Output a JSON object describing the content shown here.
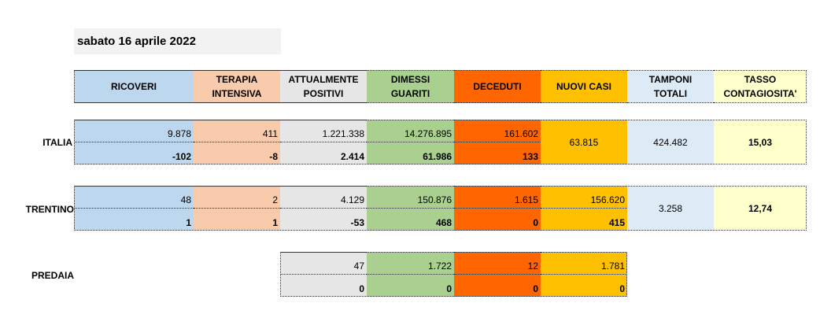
{
  "date": "sabato 16 aprile 2022",
  "headers": [
    "RICOVERI",
    "TERAPIA\nINTENSIVA",
    "ATTUALMENTE\nPOSITIVI",
    "DIMESSI\nGUARITI",
    "DECEDUTI",
    "NUOVI CASI",
    "TAMPONI\nTOTALI",
    "TASSO\nCONTAGIOSITA'"
  ],
  "italia": {
    "label": "ITALIA",
    "totals": [
      "9.878",
      "411",
      "1.221.338",
      "14.276.895",
      "161.602"
    ],
    "deltas": [
      "-102",
      "-8",
      "2.414",
      "61.986",
      "133"
    ],
    "nuovi_casi": "63.815",
    "tamponi": "424.482",
    "tasso": "15,03"
  },
  "trentino": {
    "label": "TRENTINO",
    "totals": [
      "48",
      "2",
      "4.129",
      "150.876",
      "1.615",
      "156.620"
    ],
    "deltas": [
      "1",
      "1",
      "-53",
      "468",
      "0",
      "415"
    ],
    "tamponi": "3.258",
    "tasso": "12,74"
  },
  "predaia": {
    "label": "PREDAIA",
    "totals": [
      "47",
      "1.722",
      "12",
      "1.781"
    ],
    "deltas": [
      "0",
      "0",
      "0",
      "0"
    ]
  },
  "colors": {
    "ricoveri": "#bdd7ee",
    "terapia": "#f8cbad",
    "positivi": "#e7e6e6",
    "guariti": "#a9d08e",
    "deceduti": "#ff6600",
    "nuovi": "#ffc000",
    "tamponi": "#ddebf7",
    "tasso": "#ffffcc"
  }
}
